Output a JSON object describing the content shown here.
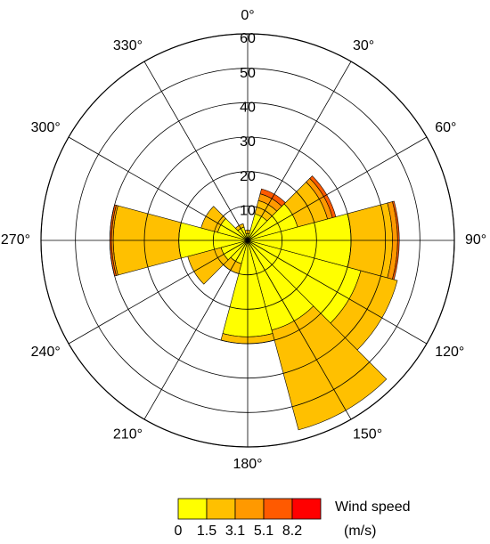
{
  "chart_data": {
    "type": "windrose",
    "x": [
      0,
      30,
      60,
      90,
      120,
      150,
      180,
      210,
      240,
      270,
      300,
      330
    ],
    "sector_width": 30,
    "series": [
      {
        "name": "0",
        "color": "#ffff00",
        "values": [
          2,
          8,
          15,
          30,
          34,
          27,
          28,
          7,
          8,
          20,
          9,
          4
        ]
      },
      {
        "name": "1.5",
        "color": "#ffc000",
        "values": [
          1,
          4,
          9,
          12,
          11,
          30,
          2,
          3,
          10,
          19,
          5,
          1
        ]
      },
      {
        "name": "3.1",
        "color": "#ff9900",
        "values": [
          0,
          2,
          1.5,
          1.5,
          0,
          0,
          0,
          0,
          0,
          0.5,
          0,
          0
        ]
      },
      {
        "name": "5.1",
        "color": "#ff5a00",
        "values": [
          0,
          1.5,
          1,
          0.5,
          0,
          0,
          0,
          0,
          0,
          0.5,
          0,
          0
        ]
      },
      {
        "name": "8.2",
        "color": "#ff0000",
        "values": [
          0,
          0,
          0,
          0,
          0,
          0,
          0,
          0,
          0,
          0,
          0,
          0
        ]
      }
    ],
    "ylim": [
      0,
      60
    ],
    "yticks": [
      10,
      20,
      30,
      40,
      50,
      60
    ],
    "angle_ticks": [
      {
        "value": 0,
        "label": "0°"
      },
      {
        "value": 30,
        "label": "30°"
      },
      {
        "value": 60,
        "label": "60°"
      },
      {
        "value": 90,
        "label": "90°"
      },
      {
        "value": 120,
        "label": "120°"
      },
      {
        "value": 150,
        "label": "150°"
      },
      {
        "value": 180,
        "label": "180°"
      },
      {
        "value": 210,
        "label": "210°"
      },
      {
        "value": 240,
        "label": "240°"
      },
      {
        "value": 270,
        "label": "270°"
      },
      {
        "value": 300,
        "label": "300°"
      },
      {
        "value": 330,
        "label": "330°"
      }
    ],
    "legend_title": "Wind speed",
    "legend_unit": "(m/s)"
  }
}
